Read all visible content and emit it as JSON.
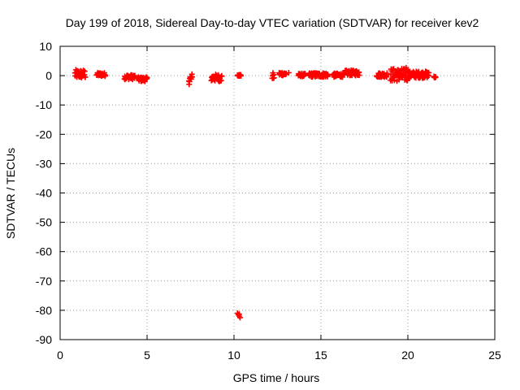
{
  "chart_data": {
    "type": "scatter",
    "title": "Day 199 of 2018, Sidereal Day-to-day VTEC variation (SDTVAR) for receiver kev2",
    "xlabel": "GPS time / hours",
    "ylabel": "SDTVAR / TECUs",
    "xlim": [
      0,
      25
    ],
    "ylim": [
      -90,
      10
    ],
    "xticks": [
      0,
      5,
      10,
      15,
      20,
      25
    ],
    "yticks": [
      10,
      0,
      -10,
      -20,
      -30,
      -40,
      -50,
      -60,
      -70,
      -80,
      -90
    ],
    "grid": true,
    "marker": "plus",
    "marker_color": "#ff0000",
    "clusters": [
      {
        "x": [
          0.85,
          1.45
        ],
        "y": [
          -1.0,
          2.0
        ]
      },
      {
        "x": [
          2.1,
          2.6
        ],
        "y": [
          -0.2,
          1.0
        ]
      },
      {
        "x": [
          3.7,
          4.3
        ],
        "y": [
          -1.3,
          0.3
        ]
      },
      {
        "x": [
          4.5,
          5.0
        ],
        "y": [
          -2.0,
          -0.5
        ]
      },
      {
        "x": [
          7.4,
          7.6
        ],
        "y": [
          -3.0,
          0.8
        ]
      },
      {
        "x": [
          8.7,
          9.3
        ],
        "y": [
          -2.0,
          0.5
        ]
      },
      {
        "x": [
          10.2,
          10.4
        ],
        "y": [
          -0.2,
          0.3
        ]
      },
      {
        "x": [
          12.2,
          12.3
        ],
        "y": [
          -1.5,
          1.0
        ]
      },
      {
        "x": [
          12.6,
          13.0
        ],
        "y": [
          0.0,
          1.2
        ]
      },
      {
        "x": [
          13.7,
          14.1
        ],
        "y": [
          -0.3,
          0.7
        ]
      },
      {
        "x": [
          14.3,
          15.4
        ],
        "y": [
          -0.5,
          1.0
        ]
      },
      {
        "x": [
          15.7,
          16.3
        ],
        "y": [
          -0.5,
          0.8
        ]
      },
      {
        "x": [
          16.4,
          17.2
        ],
        "y": [
          0.0,
          1.8
        ]
      },
      {
        "x": [
          18.2,
          18.8
        ],
        "y": [
          -0.5,
          1.0
        ]
      },
      {
        "x": [
          19.0,
          20.0
        ],
        "y": [
          -2.0,
          2.5
        ]
      },
      {
        "x": [
          20.0,
          21.2
        ],
        "y": [
          -0.8,
          1.5
        ]
      },
      {
        "x": [
          21.5,
          21.6
        ],
        "y": [
          -0.8,
          -0.2
        ]
      }
    ],
    "points": [
      [
        10.2,
        -81.0
      ],
      [
        10.25,
        -81.5
      ],
      [
        10.3,
        -82.0
      ],
      [
        10.35,
        -82.5
      ],
      [
        10.3,
        -81.3
      ],
      [
        19.9,
        2.7
      ],
      [
        21.55,
        -0.5
      ],
      [
        13.15,
        1.0
      ]
    ]
  }
}
